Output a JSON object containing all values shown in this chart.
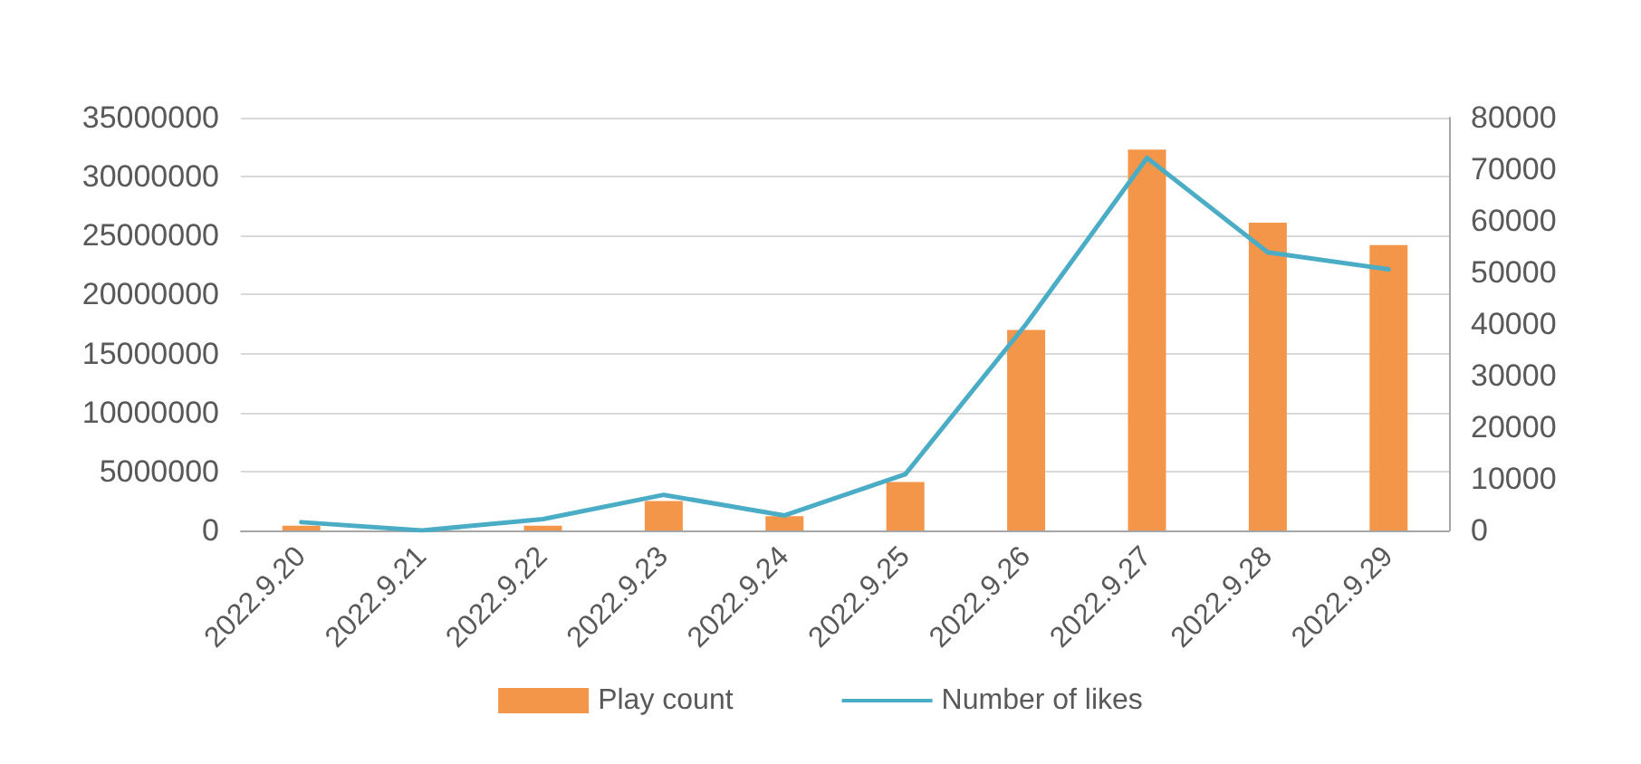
{
  "chart_data": {
    "type": "bar",
    "categories": [
      "2022.9.20",
      "2022.9.21",
      "2022.9.22",
      "2022.9.23",
      "2022.9.24",
      "2022.9.25",
      "2022.9.26",
      "2022.9.27",
      "2022.9.28",
      "2022.9.29"
    ],
    "series": [
      {
        "name": "Play count",
        "color": "#f4964a",
        "values": [
          400000,
          0,
          400000,
          2500000,
          1200000,
          4100000,
          17000000,
          32300000,
          26100000,
          24200000
        ]
      },
      {
        "name": "Number of likes",
        "type": "line",
        "axis": "y2",
        "color": "#4bacc6",
        "values": [
          1600,
          0,
          2200,
          6900,
          2900,
          10900,
          40000,
          72200,
          53900,
          50600
        ]
      }
    ],
    "ylim": [
      0,
      35000000
    ],
    "yticks": [
      0,
      5000000,
      10000000,
      15000000,
      20000000,
      25000000,
      30000000,
      35000000
    ],
    "y2lim": [
      0,
      80000
    ],
    "y2ticks": [
      0,
      10000,
      20000,
      30000,
      40000,
      50000,
      60000,
      70000,
      80000
    ],
    "grid": "y",
    "legend": "bottom",
    "marker": "none",
    "line_style": "solid"
  }
}
